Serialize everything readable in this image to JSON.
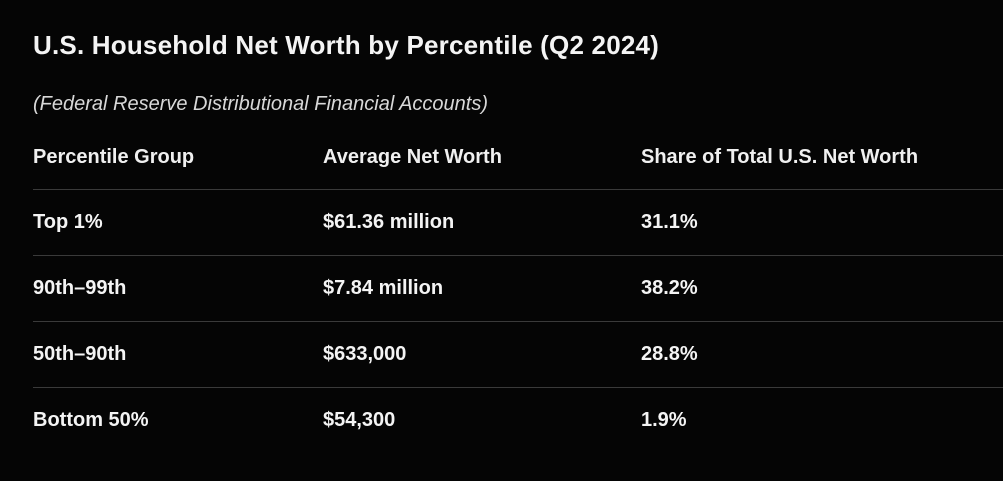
{
  "chart_data": {
    "type": "table",
    "title": "U.S. Household Net Worth by Percentile (Q2 2024)",
    "subtitle": "(Federal Reserve Distributional Financial Accounts)",
    "columns": [
      "Percentile Group",
      "Average Net Worth",
      "Share of Total U.S. Net Worth"
    ],
    "rows": [
      [
        "Top 1%",
        "$61.36 million",
        "31.1%"
      ],
      [
        "90th–99th",
        "$7.84 million",
        "38.2%"
      ],
      [
        "50th–90th",
        "$633,000",
        "28.8%"
      ],
      [
        "Bottom 50%",
        "$54,300",
        "1.9%"
      ]
    ]
  },
  "colors": {
    "background": "#050505",
    "text": "#f4f4f4",
    "subtitle": "#d8d8d8",
    "divider": "#3a3a3a"
  }
}
